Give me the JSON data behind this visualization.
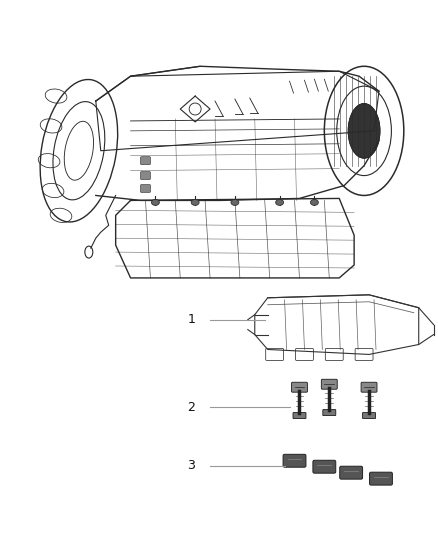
{
  "background_color": "#ffffff",
  "fig_width": 4.38,
  "fig_height": 5.33,
  "dpi": 100,
  "label1_text": "1",
  "label2_text": "2",
  "label3_text": "3",
  "line_color": "#999999",
  "line_width": 0.8,
  "drawing_color": "#2a2a2a",
  "drawing_lw": 0.8,
  "label_fontsize": 9,
  "label_color": "#111111"
}
